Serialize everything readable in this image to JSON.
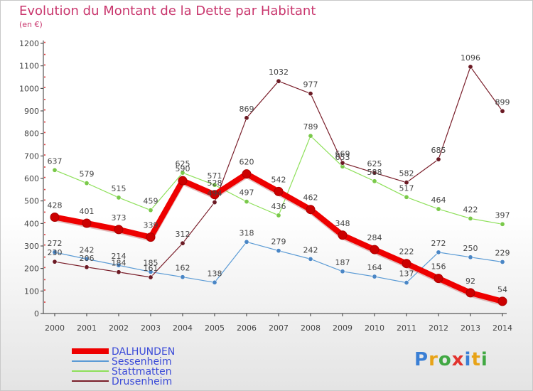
{
  "title": "Evolution du Montant de la Dette par Habitant",
  "subtitle": "(en €)",
  "logo": "Proxiti",
  "colors": {
    "title": "#c9366d",
    "axis": "#333333"
  },
  "chart_data": {
    "type": "line",
    "title": "Evolution du Montant de la Dette par Habitant",
    "subtitle": "(en €)",
    "xlabel": "",
    "ylabel": "",
    "ylim": [
      0,
      1200
    ],
    "yticks": [
      0,
      100,
      200,
      300,
      400,
      500,
      600,
      700,
      800,
      900,
      1000,
      1100,
      1200
    ],
    "x": [
      2000,
      2001,
      2002,
      2003,
      2004,
      2005,
      2006,
      2007,
      2008,
      2009,
      2010,
      2011,
      2012,
      2013,
      2014
    ],
    "legend_position": "bottom-left",
    "grid": false,
    "series": [
      {
        "name": "Sessenheim",
        "color": "#5b9bd5",
        "dot": "#4a86c5",
        "width": 1.2,
        "values": [
          272,
          242,
          214,
          185,
          162,
          138,
          318,
          279,
          242,
          187,
          164,
          137,
          272,
          250,
          229
        ]
      },
      {
        "name": "Stattmatten",
        "color": "#8ee05a",
        "dot": "#7ac94a",
        "width": 1.2,
        "values": [
          637,
          579,
          515,
          459,
          625,
          571,
          497,
          436,
          789,
          653,
          588,
          517,
          464,
          422,
          397
        ]
      },
      {
        "name": "Drusenheim",
        "color": "#7a1f2b",
        "dot": "#6b1a24",
        "width": 1.2,
        "values": [
          230,
          206,
          184,
          161,
          312,
          494,
          869,
          1032,
          977,
          669,
          625,
          582,
          685,
          1096,
          899
        ]
      },
      {
        "name": "DALHUNDEN",
        "color": "#ee0000",
        "dot": "#cc0000",
        "width": 8,
        "values": [
          428,
          401,
          373,
          339,
          590,
          528,
          620,
          542,
          462,
          348,
          284,
          222,
          156,
          92,
          54
        ]
      }
    ],
    "legend_order": [
      "DALHUNDEN",
      "Sessenheim",
      "Stattmatten",
      "Drusenheim"
    ],
    "point_labels": [
      {
        "series": "Sessenheim",
        "texts": [
          "272",
          "242",
          "214",
          "185",
          "162",
          "138",
          "318",
          "279",
          "242",
          "187",
          "164",
          "137",
          "272",
          "250",
          "229"
        ]
      },
      {
        "series": "Stattmatten",
        "texts": [
          "637",
          "579",
          "515",
          "459",
          "625",
          "571",
          "497",
          "436",
          "789",
          "653",
          "588",
          "517",
          "464",
          "422",
          "397"
        ]
      },
      {
        "series": "Drusenheim",
        "texts": [
          "230",
          "206",
          "184",
          "161",
          "312",
          "494",
          "869",
          "1032",
          "977",
          "669",
          "625",
          "582",
          "685",
          "1096",
          "899"
        ]
      },
      {
        "series": "DALHUNDEN",
        "texts": [
          "428",
          "401",
          "373",
          "339",
          "590",
          "528",
          "620",
          "542",
          "462",
          "348",
          "284",
          "222",
          "156",
          "92",
          "54"
        ]
      }
    ]
  }
}
